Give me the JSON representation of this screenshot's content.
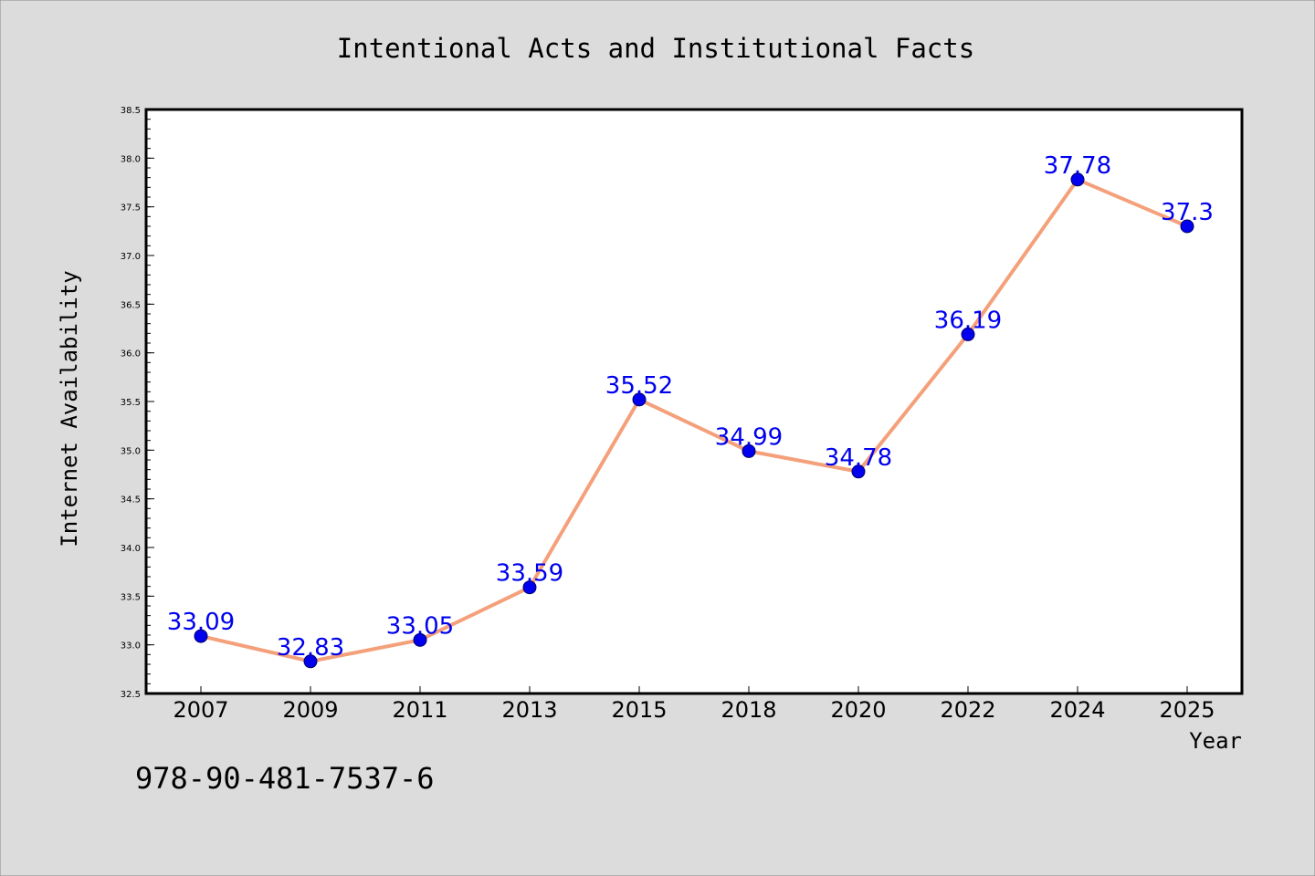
{
  "colors": {
    "figure_background": "#dcdcdc",
    "plot_background": "#ffffff",
    "line": "#f4a07a",
    "marker": "#0000ee",
    "data_label": "#0000ee",
    "axis": "#000000"
  },
  "footer": {
    "isbn": "978-90-481-7537-6"
  },
  "chart_data": {
    "type": "line",
    "title": "Intentional Acts and Institutional Facts",
    "xlabel": "Year",
    "ylabel": "Internet Availability",
    "categories": [
      "2007",
      "2009",
      "2011",
      "2013",
      "2015",
      "2018",
      "2020",
      "2022",
      "2024",
      "2025"
    ],
    "series": [
      {
        "values": [
          33.09,
          32.83,
          33.05,
          33.59,
          35.52,
          34.99,
          34.78,
          36.19,
          37.78,
          37.3
        ],
        "data_labels": [
          "33.09",
          "32.83",
          "33.05",
          "33.59",
          "35.52",
          "34.99",
          "34.78",
          "36.19",
          "37.78",
          "37.3"
        ]
      }
    ],
    "ylim": [
      32.5,
      38.5
    ],
    "y_ticks": [
      "32.5",
      "33.0",
      "33.5",
      "34.0",
      "34.5",
      "35.0",
      "35.5",
      "36.0",
      "36.5",
      "37.0",
      "37.5",
      "38.0",
      "38.5"
    ],
    "grid": false,
    "legend": "none",
    "marker": "circle"
  }
}
